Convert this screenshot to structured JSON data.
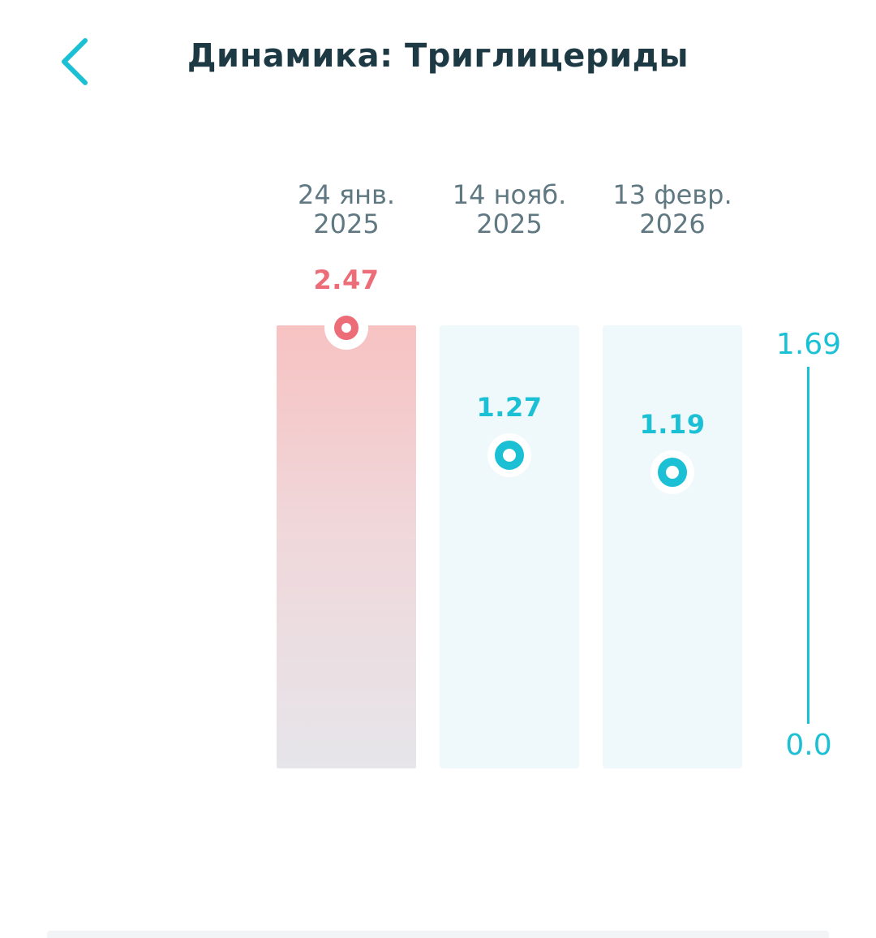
{
  "header": {
    "title": "Динамика: Триглицериды",
    "back_icon": "chevron-left-icon"
  },
  "chart_data": {
    "type": "scatter",
    "title": "Динамика: Триглицериды",
    "reference_range": [
      0.0,
      1.69
    ],
    "reference_labels": {
      "max": "1.69",
      "min": "0.0"
    },
    "points": [
      {
        "date_line1": "24 янв.",
        "date_line2": "2025",
        "value": 2.47,
        "value_label": "2.47",
        "status": "high"
      },
      {
        "date_line1": "14 нояб.",
        "date_line2": "2025",
        "value": 1.27,
        "value_label": "1.27",
        "status": "normal"
      },
      {
        "date_line1": "13 февр.",
        "date_line2": "2026",
        "value": 1.19,
        "value_label": "1.19",
        "status": "normal"
      }
    ]
  },
  "colors": {
    "accent": "#1cc0d5",
    "high": "#ec6d78",
    "title": "#1d3a44",
    "date": "#5f7881"
  }
}
